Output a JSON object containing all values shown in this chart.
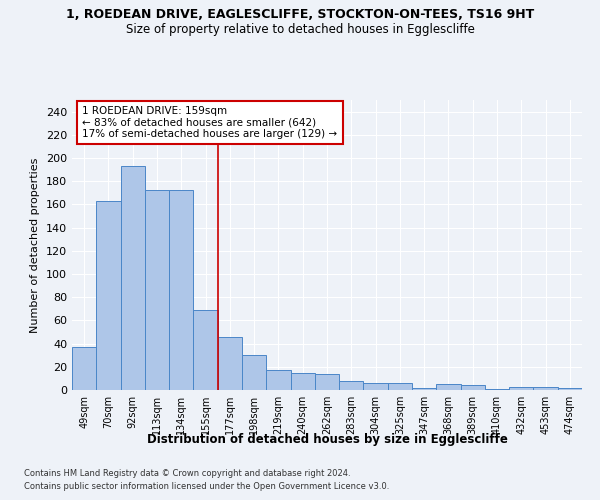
{
  "title1": "1, ROEDEAN DRIVE, EAGLESCLIFFE, STOCKTON-ON-TEES, TS16 9HT",
  "title2": "Size of property relative to detached houses in Egglescliffe",
  "xlabel": "Distribution of detached houses by size in Egglescliffe",
  "ylabel": "Number of detached properties",
  "categories": [
    "49sqm",
    "70sqm",
    "92sqm",
    "113sqm",
    "134sqm",
    "155sqm",
    "177sqm",
    "198sqm",
    "219sqm",
    "240sqm",
    "262sqm",
    "283sqm",
    "304sqm",
    "325sqm",
    "347sqm",
    "368sqm",
    "389sqm",
    "410sqm",
    "432sqm",
    "453sqm",
    "474sqm"
  ],
  "values": [
    37,
    163,
    193,
    172,
    172,
    69,
    46,
    30,
    17,
    15,
    14,
    8,
    6,
    6,
    2,
    5,
    4,
    1,
    3,
    3,
    2
  ],
  "bar_color": "#aec6e8",
  "bar_edge_color": "#4a86c8",
  "property_line_x": 5.5,
  "annotation_line1": "1 ROEDEAN DRIVE: 159sqm",
  "annotation_line2": "← 83% of detached houses are smaller (642)",
  "annotation_line3": "17% of semi-detached houses are larger (129) →",
  "annotation_box_color": "#ffffff",
  "annotation_box_edge_color": "#cc0000",
  "property_line_color": "#cc0000",
  "ylim": [
    0,
    250
  ],
  "yticks": [
    0,
    20,
    40,
    60,
    80,
    100,
    120,
    140,
    160,
    180,
    200,
    220,
    240
  ],
  "footer1": "Contains HM Land Registry data © Crown copyright and database right 2024.",
  "footer2": "Contains public sector information licensed under the Open Government Licence v3.0.",
  "background_color": "#eef2f8",
  "grid_color": "#ffffff",
  "title1_fontsize": 9,
  "title2_fontsize": 8.5
}
